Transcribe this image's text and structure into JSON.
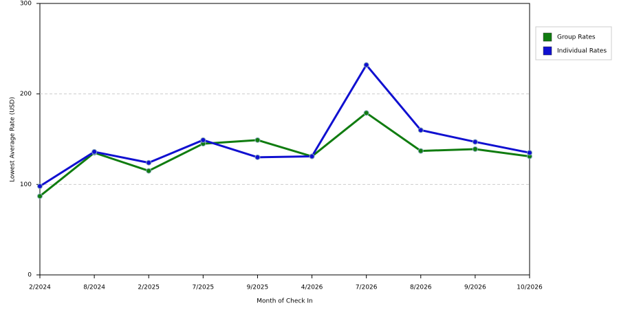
{
  "chart_data": {
    "type": "line",
    "x_label": "Month of Check In",
    "y_label": "Lowest Average Rate (USD)",
    "categories": [
      "2/2024",
      "8/2024",
      "2/2025",
      "7/2025",
      "9/2025",
      "4/2026",
      "7/2026",
      "8/2026",
      "9/2026",
      "10/2026"
    ],
    "series": [
      {
        "name": "Group Rates",
        "color": "#107c10",
        "values": [
          87,
          135,
          115,
          145,
          149,
          131,
          179,
          137,
          139,
          131
        ]
      },
      {
        "name": "Individual Rates",
        "color": "#1010d0",
        "values": [
          98,
          136,
          124,
          149,
          130,
          131,
          232,
          160,
          147,
          135
        ]
      }
    ],
    "ylim": [
      0,
      300
    ],
    "yticks": [
      0,
      100,
      200,
      300
    ],
    "grid": true,
    "legend": "right"
  }
}
